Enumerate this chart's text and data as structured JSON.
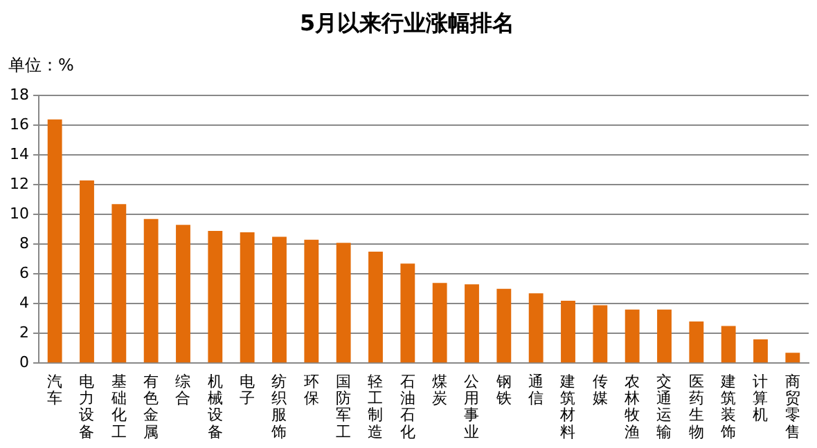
{
  "chart_data": {
    "type": "bar",
    "title": "5月以来行业涨幅排名",
    "annotations": [
      "单位：%"
    ],
    "categories": [
      "汽车",
      "电力设备",
      "基础化工",
      "有色金属",
      "综合",
      "机械设备",
      "电子",
      "纺织服饰",
      "环保",
      "国防军工",
      "轻工制造",
      "石油石化",
      "煤炭",
      "公用事业",
      "钢铁",
      "通信",
      "建筑材料",
      "传媒",
      "农林牧渔",
      "交通运输",
      "医药生物",
      "建筑装饰",
      "计算机",
      "商贸零售"
    ],
    "values": [
      16.4,
      12.3,
      10.7,
      9.7,
      9.3,
      8.9,
      8.8,
      8.5,
      8.3,
      8.1,
      7.5,
      6.7,
      5.4,
      5.3,
      5.0,
      4.7,
      4.2,
      3.9,
      3.6,
      3.6,
      2.8,
      2.5,
      1.6,
      0.7
    ],
    "color": "#e36c0a",
    "ylim": [
      0,
      18
    ],
    "yticks": [
      0,
      2,
      4,
      6,
      8,
      10,
      12,
      14,
      16,
      18
    ],
    "grid": "y",
    "legend": false
  }
}
